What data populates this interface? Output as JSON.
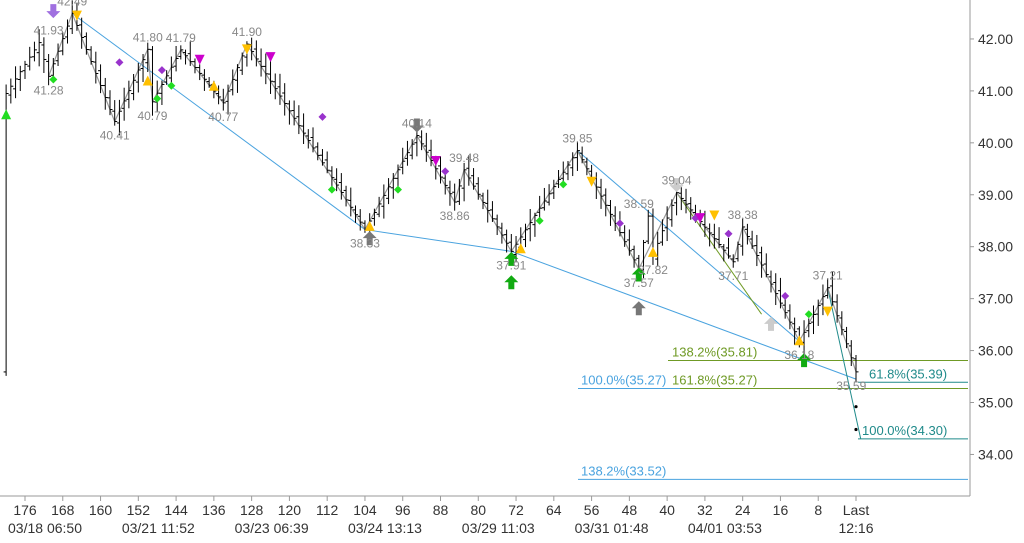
{
  "chart_data": {
    "type": "bar",
    "subtype": "ohlc-price-chart",
    "title": "",
    "xlabel": "",
    "ylabel": "",
    "ylim": [
      33.2,
      42.75
    ],
    "grid": false,
    "y_ticks": [
      "34.00",
      "35.00",
      "36.00",
      "37.00",
      "38.00",
      "39.00",
      "40.00",
      "41.00",
      "42.00"
    ],
    "x_ticks": [
      {
        "bars": "176",
        "time": "03/18 06:50"
      },
      {
        "bars": "168",
        "time": ""
      },
      {
        "bars": "160",
        "time": ""
      },
      {
        "bars": "152",
        "time": "03/21 11:52"
      },
      {
        "bars": "144",
        "time": ""
      },
      {
        "bars": "136",
        "time": ""
      },
      {
        "bars": "128",
        "time": "03/23 06:39"
      },
      {
        "bars": "120",
        "time": ""
      },
      {
        "bars": "112",
        "time": ""
      },
      {
        "bars": "104",
        "time": "03/24 13:13"
      },
      {
        "bars": "96",
        "time": ""
      },
      {
        "bars": "88",
        "time": ""
      },
      {
        "bars": "80",
        "time": "03/29 11:03"
      },
      {
        "bars": "72",
        "time": ""
      },
      {
        "bars": "64",
        "time": ""
      },
      {
        "bars": "56",
        "time": "03/31 01:48"
      },
      {
        "bars": "48",
        "time": ""
      },
      {
        "bars": "40",
        "time": ""
      },
      {
        "bars": "32",
        "time": "04/01 03:53"
      },
      {
        "bars": "24",
        "time": ""
      },
      {
        "bars": "16",
        "time": ""
      },
      {
        "bars": "8",
        "time": ""
      },
      {
        "bars": "Last",
        "time": "12:16"
      }
    ],
    "swing_points": [
      {
        "label": "41.93",
        "x": 171,
        "y": 41.93
      },
      {
        "label": "41.28",
        "x": 171,
        "y": 41.28
      },
      {
        "label": "42.49",
        "x": 166,
        "y": 42.49
      },
      {
        "label": "40.41",
        "x": 157,
        "y": 40.41
      },
      {
        "label": "41.80",
        "x": 150,
        "y": 41.8
      },
      {
        "label": "40.79",
        "x": 149,
        "y": 40.79
      },
      {
        "label": "41.79",
        "x": 143,
        "y": 41.79
      },
      {
        "label": "40.77",
        "x": 134,
        "y": 40.77
      },
      {
        "label": "41.90",
        "x": 129,
        "y": 41.9
      },
      {
        "label": "38.33",
        "x": 104,
        "y": 38.33
      },
      {
        "label": "40.14",
        "x": 93,
        "y": 40.14
      },
      {
        "label": "38.86",
        "x": 85,
        "y": 38.86
      },
      {
        "label": "39.48",
        "x": 83,
        "y": 39.48
      },
      {
        "label": "37.91",
        "x": 73,
        "y": 37.91
      },
      {
        "label": "39.85",
        "x": 59,
        "y": 39.85
      },
      {
        "label": "37.57",
        "x": 46,
        "y": 37.57
      },
      {
        "label": "37.82",
        "x": 43,
        "y": 37.82
      },
      {
        "label": "38.59",
        "x": 46,
        "y": 38.59
      },
      {
        "label": "39.04",
        "x": 38,
        "y": 39.04
      },
      {
        "label": "37.71",
        "x": 26,
        "y": 37.71
      },
      {
        "label": "38.38",
        "x": 24,
        "y": 38.38
      },
      {
        "label": "36.18",
        "x": 12,
        "y": 36.18
      },
      {
        "label": "37.21",
        "x": 6,
        "y": 37.21
      },
      {
        "label": "35.59",
        "x": 1,
        "y": 35.59
      }
    ],
    "fib_levels": [
      {
        "label": "138.2%(35.81)",
        "value": 35.81,
        "color": "#6f9a25"
      },
      {
        "label": "161.8%(35.27)",
        "value": 35.27,
        "color": "#6f9a25"
      },
      {
        "label": "100.0%(35.27)",
        "value": 35.27,
        "color": "#4aa3df"
      },
      {
        "label": "61.8%(35.39)",
        "value": 35.39,
        "color": "#1f8a8a"
      },
      {
        "label": "100.0%(34.30)",
        "value": 34.3,
        "color": "#1f8a8a"
      },
      {
        "label": "138.2%(33.52)",
        "value": 33.52,
        "color": "#4aa3df"
      }
    ],
    "colors": {
      "bars": "#000000",
      "zigzag": "#999999",
      "fib_blue": "#4aa3df",
      "fib_olive": "#6f9a25",
      "fib_teal": "#1f8a8a",
      "marker_green": "#22dd22",
      "marker_gold": "#ffc000",
      "marker_purple": "#9933cc",
      "marker_magenta": "#cc00cc",
      "arrow_green": "#11aa11",
      "arrow_gray": "#777777"
    }
  }
}
